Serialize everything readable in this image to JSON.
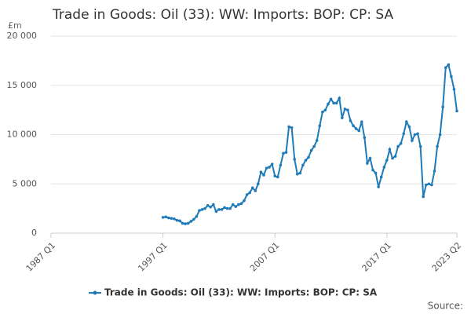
{
  "chart_data": {
    "type": "line",
    "title": "Trade in Goods: Oil (33): WW: Imports: BOP: CP: SA",
    "y_label": "£m",
    "source": "Source:",
    "legend": "bottom",
    "grid": true,
    "xlim": [
      "1987 Q1",
      "2023 Q2"
    ],
    "xticks": [
      "1987 Q1",
      "1997 Q1",
      "2007 Q1",
      "2017 Q1",
      "2023 Q2"
    ],
    "ylim": [
      0,
      20000
    ],
    "yticks": [
      0,
      {
        "value": 5000,
        "label": "5 000"
      },
      {
        "value": 10000,
        "label": "10 000"
      },
      {
        "value": 15000,
        "label": "15 000"
      },
      {
        "value": 20000,
        "label": "20 000"
      }
    ],
    "x": [
      "1997 Q1",
      "1997 Q2",
      "1997 Q3",
      "1997 Q4",
      "1998 Q1",
      "1998 Q2",
      "1998 Q3",
      "1998 Q4",
      "1999 Q1",
      "1999 Q2",
      "1999 Q3",
      "1999 Q4",
      "2000 Q1",
      "2000 Q2",
      "2000 Q3",
      "2000 Q4",
      "2001 Q1",
      "2001 Q2",
      "2001 Q3",
      "2001 Q4",
      "2002 Q1",
      "2002 Q2",
      "2002 Q3",
      "2002 Q4",
      "2003 Q1",
      "2003 Q2",
      "2003 Q3",
      "2003 Q4",
      "2004 Q1",
      "2004 Q2",
      "2004 Q3",
      "2004 Q4",
      "2005 Q1",
      "2005 Q2",
      "2005 Q3",
      "2005 Q4",
      "2006 Q1",
      "2006 Q2",
      "2006 Q3",
      "2006 Q4",
      "2007 Q1",
      "2007 Q2",
      "2007 Q3",
      "2007 Q4",
      "2008 Q1",
      "2008 Q2",
      "2008 Q3",
      "2008 Q4",
      "2009 Q1",
      "2009 Q2",
      "2009 Q3",
      "2009 Q4",
      "2010 Q1",
      "2010 Q2",
      "2010 Q3",
      "2010 Q4",
      "2011 Q1",
      "2011 Q2",
      "2011 Q3",
      "2011 Q4",
      "2012 Q1",
      "2012 Q2",
      "2012 Q3",
      "2012 Q4",
      "2013 Q1",
      "2013 Q2",
      "2013 Q3",
      "2013 Q4",
      "2014 Q1",
      "2014 Q2",
      "2014 Q3",
      "2014 Q4",
      "2015 Q1",
      "2015 Q2",
      "2015 Q3",
      "2015 Q4",
      "2016 Q1",
      "2016 Q2",
      "2016 Q3",
      "2016 Q4",
      "2017 Q1",
      "2017 Q2",
      "2017 Q3",
      "2017 Q4",
      "2018 Q1",
      "2018 Q2",
      "2018 Q3",
      "2018 Q4",
      "2019 Q1",
      "2019 Q2",
      "2019 Q3",
      "2019 Q4",
      "2020 Q1",
      "2020 Q2",
      "2020 Q3",
      "2020 Q4",
      "2021 Q1",
      "2021 Q2",
      "2021 Q3",
      "2021 Q4",
      "2022 Q1",
      "2022 Q2",
      "2022 Q3",
      "2022 Q4",
      "2023 Q1",
      "2023 Q2"
    ],
    "series": [
      {
        "name": "Trade in Goods: Oil (33): WW: Imports: BOP: CP: SA",
        "color": "#1f7ab8",
        "values": [
          1600,
          1650,
          1550,
          1500,
          1450,
          1300,
          1250,
          1000,
          950,
          1000,
          1200,
          1400,
          1700,
          2300,
          2400,
          2500,
          2800,
          2650,
          2900,
          2200,
          2400,
          2400,
          2600,
          2500,
          2500,
          2900,
          2700,
          2900,
          3000,
          3300,
          3900,
          4100,
          4600,
          4300,
          5000,
          6200,
          5900,
          6600,
          6700,
          7000,
          5800,
          5700,
          6900,
          8100,
          8200,
          10800,
          10700,
          7500,
          6000,
          6100,
          6900,
          7400,
          7700,
          8400,
          8800,
          9400,
          10900,
          12300,
          12500,
          13100,
          13600,
          13200,
          13200,
          13700,
          11700,
          12600,
          12500,
          11400,
          10900,
          10600,
          10400,
          11300,
          9700,
          7100,
          7600,
          6400,
          6100,
          4700,
          5700,
          6700,
          7400,
          8500,
          7600,
          7800,
          8800,
          9100,
          10100,
          11300,
          10800,
          9400,
          10000,
          10100,
          8800,
          3700,
          4900,
          5000,
          4900,
          6300,
          8800,
          10000,
          12800,
          16800,
          17100,
          15900,
          14600,
          12400
        ]
      }
    ]
  }
}
